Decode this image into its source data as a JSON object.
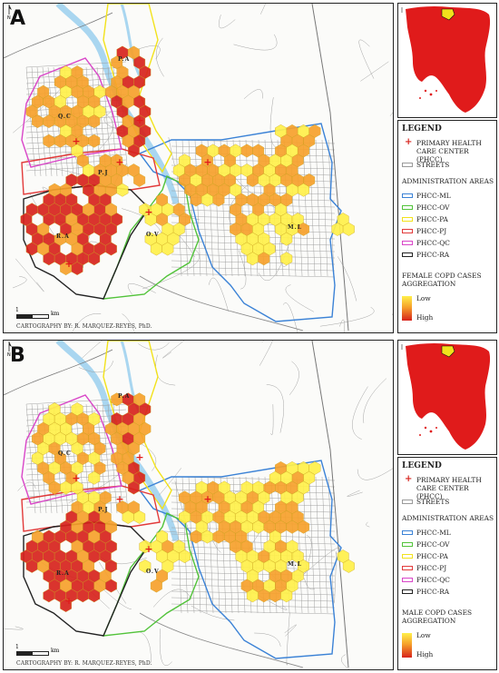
{
  "panels": [
    {
      "label": "A",
      "cartography": "CARTOGRAPHY BY: R. MARQUEZ-REYES, PhD.",
      "legend": {
        "title": "LEGEND",
        "phcc": "PRIMARY HEALTH CARE CENTER (PHCC)",
        "streets": "STREETS",
        "admin_title": "ADMINISTRATION AREAS",
        "areas": [
          {
            "label": "PHCC-ML",
            "color": "#3b82d6"
          },
          {
            "label": "PHCC-OV",
            "color": "#52c33a"
          },
          {
            "label": "PHCC-PA",
            "color": "#f2e21c"
          },
          {
            "label": "PHCC-PJ",
            "color": "#e23a3a"
          },
          {
            "label": "PHCC-QC",
            "color": "#d946c8"
          },
          {
            "label": "PHCC-RA",
            "color": "#222222"
          }
        ],
        "agg_title": "FEMALE COPD CASES AGGREGATION",
        "low": "Low",
        "high": "High"
      },
      "scale": {
        "zero": "1",
        "unit": "km"
      },
      "area_labels": {
        "pa": "P.A",
        "qc": "Q.C",
        "pj": "P.J",
        "ra": "R.A",
        "ov": "O.V",
        "ml": "M.L"
      }
    },
    {
      "label": "B",
      "cartography": "CARTOGRAPHY BY: R. MARQUEZ-REYES, PhD.",
      "legend": {
        "title": "LEGEND",
        "phcc": "PRIMARY HEALTH CARE CENTER (PHCC)",
        "streets": "STREETS",
        "admin_title": "ADMINISTRATION AREAS",
        "areas": [
          {
            "label": "PHCC-ML",
            "color": "#3b82d6"
          },
          {
            "label": "PHCC-OV",
            "color": "#52c33a"
          },
          {
            "label": "PHCC-PA",
            "color": "#f2e21c"
          },
          {
            "label": "PHCC-PJ",
            "color": "#e23a3a"
          },
          {
            "label": "PHCC-QC",
            "color": "#d946c8"
          },
          {
            "label": "PHCC-RA",
            "color": "#222222"
          }
        ],
        "agg_title": "MALE COPD CASES AGGREGATION",
        "low": "Low",
        "high": "High"
      },
      "scale": {
        "zero": "1",
        "unit": "km"
      },
      "area_labels": {
        "pa": "P.A",
        "qc": "Q.C",
        "pj": "P.J",
        "ra": "R.A",
        "ov": "O.V",
        "ml": "M.L"
      }
    }
  ],
  "colors": {
    "hex_low": "#fff04a",
    "hex_mid": "#f6a12b",
    "hex_high": "#d7231c",
    "river": "#a9d6f0",
    "street": "#9a9a9a",
    "inset_land": "#e01b1b",
    "inset_focus": "#f2e21c"
  },
  "icons": {
    "phcc": "red-cross-icon",
    "north": "north-arrow-icon"
  }
}
